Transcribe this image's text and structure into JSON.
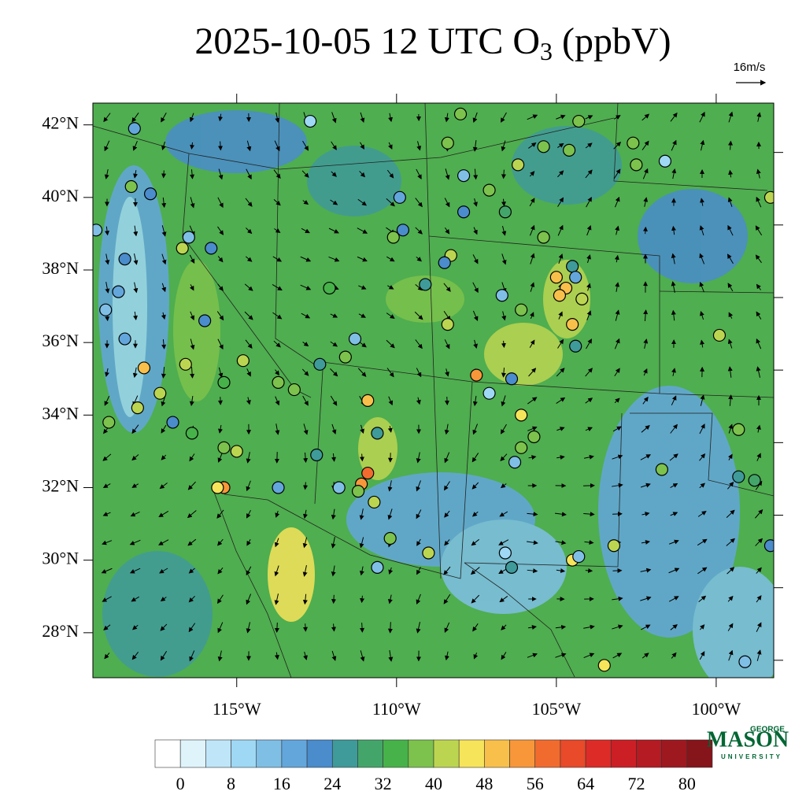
{
  "chart_data": {
    "type": "map",
    "title": [
      "2025-10-05 12 UTC O",
      "3",
      "(ppbV)"
    ],
    "vector_label": "16m/s",
    "logo": [
      "GEORGE",
      "MASON",
      "UNIVERSITY"
    ],
    "xlim": [
      -119.5,
      -98.2
    ],
    "ylim": [
      26.76,
      42.6
    ],
    "xticks": [
      {
        "value": -115,
        "label": "115°W"
      },
      {
        "value": -110,
        "label": "110°W"
      },
      {
        "value": -105,
        "label": "105°W"
      },
      {
        "value": -100,
        "label": "100°W"
      }
    ],
    "yticks": [
      {
        "value": 28,
        "label": "28°N"
      },
      {
        "value": 30,
        "label": "30°N"
      },
      {
        "value": 32,
        "label": "32°N"
      },
      {
        "value": 34,
        "label": "34°N"
      },
      {
        "value": 36,
        "label": "36°N"
      },
      {
        "value": 38,
        "label": "38°N"
      },
      {
        "value": 40,
        "label": "40°N"
      },
      {
        "value": 42,
        "label": "42°N"
      }
    ],
    "colorbar": {
      "levels": [
        0,
        4,
        8,
        12,
        16,
        20,
        24,
        28,
        32,
        36,
        40,
        44,
        48,
        52,
        56,
        60,
        64,
        68,
        72,
        76,
        80
      ],
      "colors": [
        "#ffffff",
        "#dff3fb",
        "#bfe6f8",
        "#9ed8f4",
        "#7fbfe6",
        "#63a6dc",
        "#4a8ccc",
        "#3f9a9a",
        "#44a56a",
        "#47b24a",
        "#7cc24c",
        "#bcd551",
        "#f6e45a",
        "#f8c04a",
        "#f7973a",
        "#f26b2e",
        "#e84a2a",
        "#dd2b27",
        "#cc1f25",
        "#b41b22",
        "#9e1820",
        "#86141b"
      ],
      "ticks": [
        0,
        8,
        16,
        24,
        32,
        40,
        48,
        56,
        64,
        72,
        80
      ]
    },
    "stations": {
      "lon": [
        -118.2,
        -112.7,
        -117.7,
        -118.3,
        -119.4,
        -116.5,
        -116.7,
        -115.8,
        -118.5,
        -118.7,
        -119.1,
        -118.5,
        -117.9,
        -117.4,
        -118.1,
        -117.0,
        -116.4,
        -115.4,
        -115.0,
        -115.4,
        -115.6,
        -116.0,
        -116.6,
        -114.8,
        -115.4,
        -113.7,
        -113.7,
        -113.2,
        -112.1,
        -112.4,
        -111.3,
        -111.6,
        -110.9,
        -110.6,
        -110.9,
        -111.1,
        -111.2,
        -110.7,
        -112.5,
        -111.8,
        -110.2,
        -110.6,
        -109.9,
        -109.8,
        -110.1,
        -109.0,
        -108.0,
        -108.4,
        -107.9,
        -107.9,
        -108.3,
        -108.5,
        -109.1,
        -108.4,
        -107.5,
        -107.1,
        -106.4,
        -106.7,
        -106.1,
        -106.2,
        -107.1,
        -106.6,
        -105.4,
        -104.6,
        -104.3,
        -105.4,
        -105.0,
        -104.7,
        -104.9,
        -104.5,
        -104.4,
        -104.2,
        -104.5,
        -104.4,
        -106.1,
        -106.1,
        -106.3,
        -105.7,
        -106.6,
        -106.4,
        -104.5,
        -104.3,
        -103.2,
        -103.5,
        -102.5,
        -102.6,
        -101.6,
        -99.9,
        -99.3,
        -101.7,
        -99.3,
        -98.8,
        -98.3,
        -99.1,
        -98.3,
        -119.0
      ],
      "lat": [
        41.9,
        42.1,
        40.1,
        40.3,
        39.1,
        38.9,
        38.6,
        38.6,
        38.3,
        37.4,
        36.9,
        36.1,
        35.3,
        34.6,
        34.2,
        33.8,
        33.5,
        33.1,
        33.0,
        32.0,
        32.0,
        36.6,
        35.4,
        35.5,
        34.9,
        32.0,
        34.9,
        34.7,
        37.5,
        35.4,
        36.1,
        35.6,
        34.4,
        33.5,
        32.4,
        32.1,
        31.9,
        31.6,
        32.9,
        32.0,
        30.6,
        29.8,
        40.0,
        39.1,
        38.9,
        30.2,
        42.3,
        41.5,
        40.6,
        39.6,
        38.4,
        38.2,
        37.6,
        36.5,
        35.1,
        34.6,
        35.0,
        37.3,
        36.9,
        40.9,
        40.2,
        39.6,
        41.4,
        41.3,
        42.1,
        38.9,
        37.8,
        37.5,
        37.3,
        38.1,
        37.8,
        37.2,
        36.5,
        35.9,
        34.0,
        33.1,
        32.7,
        33.4,
        30.2,
        29.8,
        30.0,
        30.1,
        30.4,
        27.1,
        40.9,
        41.5,
        41.0,
        36.2,
        33.6,
        32.5,
        32.3,
        32.2,
        30.4,
        27.2,
        40.0,
        33.8
      ],
      "values": [
        16,
        8,
        20,
        36,
        12,
        14,
        40,
        22,
        20,
        18,
        12,
        18,
        48,
        42,
        40,
        22,
        34,
        36,
        40,
        52,
        44,
        22,
        40,
        40,
        34,
        16,
        36,
        38,
        32,
        24,
        12,
        36,
        48,
        24,
        58,
        54,
        36,
        42,
        24,
        14,
        38,
        12,
        18,
        20,
        36,
        40,
        36,
        38,
        14,
        20,
        40,
        20,
        26,
        42,
        52,
        10,
        22,
        12,
        36,
        40,
        38,
        30,
        36,
        36,
        36,
        38,
        50,
        48,
        50,
        24,
        18,
        42,
        48,
        24,
        44,
        36,
        14,
        36,
        10,
        24,
        44,
        14,
        40,
        44,
        38,
        36,
        10,
        42,
        38,
        38,
        24,
        28,
        22,
        14,
        40,
        38
      ]
    }
  }
}
